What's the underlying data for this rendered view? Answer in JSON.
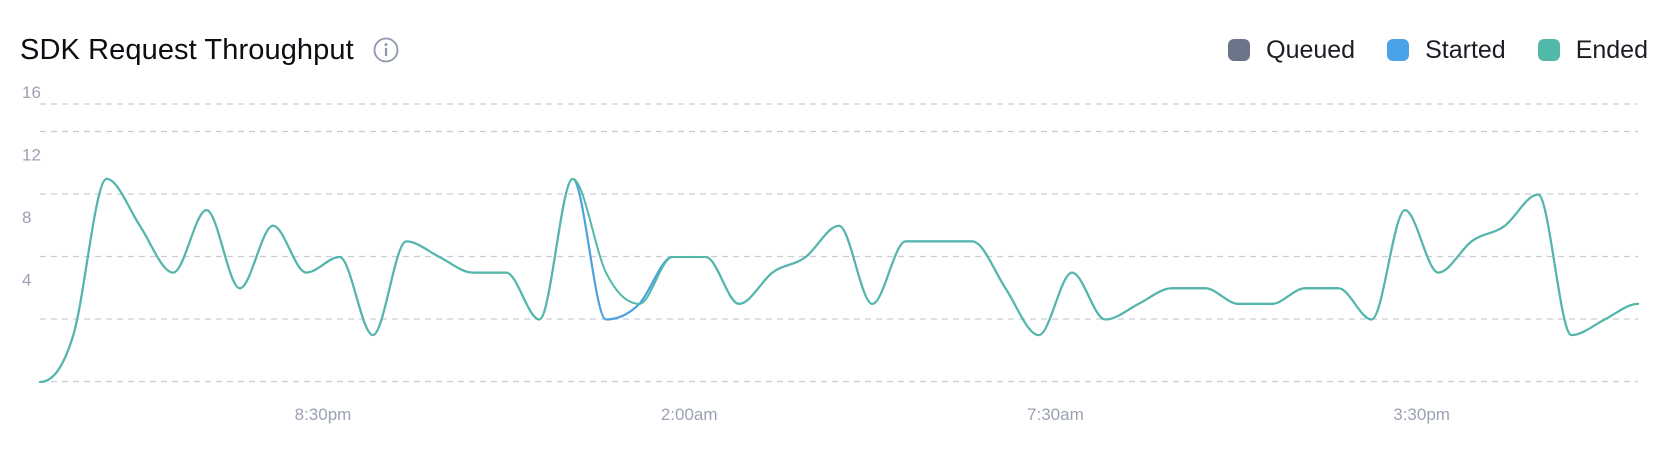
{
  "header": {
    "title": "SDK Request Throughput",
    "info_icon": "info-circle-icon"
  },
  "legend": [
    {
      "key": "queued",
      "label": "Queued",
      "color": "#6b7488"
    },
    {
      "key": "started",
      "label": "Started",
      "color": "#4aa3e8"
    },
    {
      "key": "ended",
      "label": "Ended",
      "color": "#52b9a8"
    }
  ],
  "chart_data": {
    "type": "line",
    "title": "SDK Request Throughput",
    "xlabel": "",
    "ylabel": "",
    "ylim": [
      0,
      16
    ],
    "yticks": [
      4,
      8,
      12,
      16
    ],
    "ytick_labels": [
      "4",
      "8",
      "12",
      "16"
    ],
    "xtick_labels": [
      "8:30pm",
      "2:00am",
      "7:30am",
      "3:30pm"
    ],
    "xtick_index": [
      8.5,
      19.5,
      30.5,
      41.5
    ],
    "grid": true,
    "legend_position": "top-right",
    "x": [
      0,
      1,
      2,
      3,
      4,
      5,
      6,
      7,
      8,
      9,
      10,
      11,
      12,
      13,
      14,
      15,
      16,
      17,
      18,
      19,
      20,
      21,
      22,
      23,
      24,
      25,
      26,
      27,
      28,
      29,
      30,
      31,
      32,
      33,
      34,
      35,
      36,
      37,
      38,
      39,
      40,
      41,
      42,
      43,
      44,
      45,
      46,
      47,
      48
    ],
    "series": [
      {
        "name": "Queued",
        "color": "#6b7488",
        "values": [
          0,
          3,
          13,
          10,
          7,
          11,
          6,
          10,
          7,
          8,
          3,
          9,
          8,
          7,
          7,
          4,
          13,
          4,
          5,
          8,
          8,
          5,
          7,
          8,
          10,
          5,
          9,
          9,
          9,
          6,
          3,
          7,
          4,
          5,
          6,
          6,
          5,
          5,
          6,
          6,
          4,
          11,
          7,
          9,
          10,
          12,
          3,
          4,
          5
        ]
      },
      {
        "name": "Started",
        "color": "#4aa3e8",
        "values": [
          0,
          3,
          13,
          10,
          7,
          11,
          6,
          10,
          7,
          8,
          3,
          9,
          8,
          7,
          7,
          4,
          13,
          4,
          5,
          8,
          8,
          5,
          7,
          8,
          10,
          5,
          9,
          9,
          9,
          6,
          3,
          7,
          4,
          5,
          6,
          6,
          5,
          5,
          6,
          6,
          4,
          11,
          7,
          9,
          10,
          12,
          3,
          4,
          5
        ]
      },
      {
        "name": "Ended",
        "color": "#52b9a8",
        "values": [
          0,
          3,
          13,
          10,
          7,
          11,
          6,
          10,
          7,
          8,
          3,
          9,
          8,
          7,
          7,
          4,
          13,
          7,
          5,
          8,
          8,
          5,
          7,
          8,
          10,
          5,
          9,
          9,
          9,
          6,
          3,
          7,
          4,
          5,
          6,
          6,
          5,
          5,
          6,
          6,
          4,
          11,
          7,
          9,
          10,
          12,
          3,
          4,
          5
        ]
      }
    ]
  }
}
